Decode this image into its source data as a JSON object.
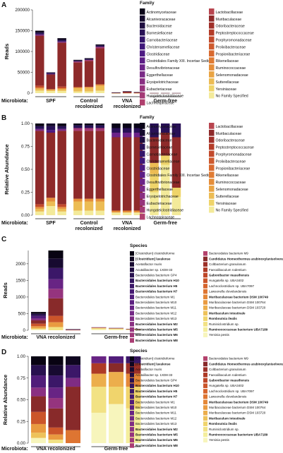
{
  "panels": [
    {
      "letter": "A",
      "chart_data": {
        "type": "bar",
        "stacked": true,
        "ylabel": "Reads",
        "ylim": [
          0,
          200000
        ],
        "yticks": [
          0,
          50000,
          100000,
          150000,
          200000
        ],
        "ytick_labels": [
          "0",
          "50000",
          "100000",
          "150000",
          "200000"
        ],
        "xlabel_prefix": "Microbiota:",
        "groups": [
          {
            "label": "SPF",
            "label2": "",
            "totals": [
              150000,
              50000,
              132000
            ]
          },
          {
            "label": "Control",
            "label2": "recolonized",
            "totals": [
              80000,
              84000,
              117000
            ]
          },
          {
            "label": "VNA",
            "label2": "recolonized",
            "totals": [
              1500,
              4500,
              2500
            ]
          },
          {
            "label": "Germ-free",
            "label2": "",
            "totals": [
              300,
              300,
              300
            ]
          }
        ],
        "legend_title": "Family",
        "legend_col1": [
          "Actinomycetaceae",
          "Alcanivoracaceae",
          "Bacteroidaceae",
          "Barnesiellaceae",
          "Carnobacteriaceae",
          "Christensenellaceae",
          "Clostridiaceae",
          "Clostridiales Family XIII. Incertae Sedis",
          "Desulfovibrionaceae",
          "Eggerthellaceae",
          "Erysipelotrichaceae",
          "Eubacteriaceae",
          "Hungateiclostridiaceae",
          "Lachnospiraceae"
        ],
        "legend_col2": [
          "Lactobacillaceae",
          "Muribaculaceae",
          "Odoribacteraceae",
          "Peptostreptococcaceae",
          "Porphyromonadaceae",
          "Prolixibacteraceae",
          "Propionibacteriaceae",
          "Rikenellaceae",
          "Ruminococcaceae",
          "Selenomonadaceae",
          "Sutterellaceae",
          "Yersiniaceae",
          "No Family Specified"
        ]
      }
    },
    {
      "letter": "B",
      "chart_data": {
        "type": "bar",
        "stacked": true,
        "ylabel": "Relative Abundance",
        "ylim": [
          0,
          1
        ],
        "yticks": [
          0,
          0.25,
          0.5,
          0.75,
          1
        ],
        "ytick_labels": [
          "0.00",
          "0.25",
          "0.50",
          "0.75",
          "1.00"
        ],
        "xlabel_prefix": "Microbiota:",
        "groups": [
          {
            "label": "SPF",
            "label2": ""
          },
          {
            "label": "Control",
            "label2": "recolonized"
          },
          {
            "label": "VNA",
            "label2": "recolonized"
          },
          {
            "label": "Germ-free",
            "label2": ""
          }
        ],
        "legend_title": "Family",
        "legend_col1": [
          "Actinomycetaceae",
          "Alcanivoracaceae",
          "Bacteroidaceae",
          "Barnesiellaceae",
          "Carnobacteriaceae",
          "Christensenellaceae",
          "Clostridiaceae",
          "Clostridiales Family XIII. Incertae Sedis",
          "Desulfovibrionaceae",
          "Eggerthellaceae",
          "Erysipelotrichaceae",
          "Eubacteriaceae",
          "Hungateiclostridiaceae",
          "Lachnospiraceae"
        ],
        "legend_col2": [
          "Lactobacillaceae",
          "Muribaculaceae",
          "Odoribacteraceae",
          "Peptostreptococcaceae",
          "Porphyromonadaceae",
          "Prolixibacteraceae",
          "Propionibacteriaceae",
          "Rikenellaceae",
          "Ruminococcaceae",
          "Selenomonadaceae",
          "Sutterellaceae",
          "Yersiniaceae",
          "No Family Specified"
        ]
      }
    },
    {
      "letter": "C",
      "chart_data": {
        "type": "bar",
        "stacked": true,
        "ylabel": "Reads",
        "ylim": [
          0,
          2400
        ],
        "yticks": [
          0,
          500,
          1000,
          1500,
          2000
        ],
        "ytick_labels": [
          "0",
          "500",
          "1000",
          "1500",
          "2000"
        ],
        "xlabel_prefix": "Microbiota:",
        "groups": [
          {
            "label": "VNA recolonized",
            "label2": "",
            "totals": [
              550,
              2400,
              30
            ]
          },
          {
            "label": "Germ-free",
            "label2": "",
            "totals": [
              90,
              70,
              40
            ]
          }
        ],
        "legend_title": "Species",
        "legend_col1": [
          "[Clostridium] clostridioforme",
          "[Clostridium] lavalense",
          "Acetatifactor muris",
          "Acutalibacter sp. 1XD8-33",
          "Bacteroidales bacterium GP4",
          "Bacteroidales bacterium H10",
          "Bacteroidales bacterium H5",
          "Bacteroidales bacterium H7",
          "Bacteroidales bacterium M1",
          "Bacteroidales bacterium M10",
          "Bacteroidales bacterium M11",
          "Bacteroidales bacterium M12",
          "Bacteroidales bacterium M13",
          "Bacteroidales bacterium M2",
          "Bacteroidales bacterium M5",
          "Bacteroidales bacterium M6",
          "Bacteroidales bacterium M8"
        ],
        "legend_col2": [
          "Bacteroidales bacterium M9",
          "Candidatus Homeothermus arabinoxylanisolvens",
          "Coltbacterium granulosum",
          "Faecalibaculum rodentium",
          "Gabonibacter massiliensis",
          "Hungatella sp. UBA3402",
          "Lachnoclostridium sp. UBA7097",
          "Lawsonella clevelandensis",
          "Muribaculaceae bacterium DSM 100749",
          "Muribaculaceae bacterium DSM 100764",
          "Muribaculaceae bacterium DSM 103720",
          "Muribaculum intestinale",
          "Romboutsia ilealis",
          "Ruminiclostridium sp.",
          "Ruminococcaceae bacterium UBA7189",
          "Yersinia pestis"
        ],
        "bold_col1": [
          1,
          5,
          6,
          7,
          13,
          14,
          15,
          16
        ],
        "bold_col2": [
          1,
          4,
          8,
          11,
          12,
          14
        ]
      }
    },
    {
      "letter": "D",
      "chart_data": {
        "type": "bar",
        "stacked": true,
        "ylabel": "Relative Abundance",
        "ylim": [
          0,
          1
        ],
        "yticks": [
          0,
          0.25,
          0.5,
          0.75,
          1
        ],
        "ytick_labels": [
          "0.00",
          "0.25",
          "0.50",
          "0.75",
          "1.00"
        ],
        "xlabel_prefix": "Microbiota:",
        "groups": [
          {
            "label": "VNA recolonized",
            "label2": ""
          },
          {
            "label": "Germ-free",
            "label2": ""
          }
        ],
        "legend_title": "Species",
        "legend_col1": [
          "[Clostridium] clostridioforme",
          "[Clostridium] lavalense",
          "Acetatifactor muris",
          "Acutalibacter sp. 1XD8-33",
          "Bacteroidales bacterium GP4",
          "Bacteroidales bacterium H10",
          "Bacteroidales bacterium H5",
          "Bacteroidales bacterium H7",
          "Bacteroidales bacterium M1",
          "Bacteroidales bacterium M10",
          "Bacteroidales bacterium M11",
          "Bacteroidales bacterium M12",
          "Bacteroidales bacterium M13",
          "Bacteroidales bacterium M2",
          "Bacteroidales bacterium M5",
          "Bacteroidales bacterium M6",
          "Bacteroidales bacterium M8"
        ],
        "legend_col2": [
          "Bacteroidales bacterium M9",
          "Candidatus Homeothermus arabinoxylanisolvens",
          "Coltbacterium granulosum",
          "Faecalibaculum rodentium",
          "Gabonibacter massiliensis",
          "Hungatella sp. UBA3402",
          "Lachnoclostridium sp. UBA7097",
          "Lawsonella clevelandensis",
          "Muribaculaceae bacterium DSM 100749",
          "Muribaculaceae bacterium DSM 100764",
          "Muribaculaceae bacterium DSM 103720",
          "Muribaculum intestinale",
          "Romboutsia ilealis",
          "Ruminiclostridium sp.",
          "Ruminococcaceae bacterium UBA7189",
          "Yersinia pestis"
        ],
        "bold_col1": [
          1,
          5,
          6,
          7,
          13,
          14,
          15,
          16
        ],
        "bold_col2": [
          1,
          4,
          8,
          11,
          12,
          14
        ]
      }
    }
  ],
  "colors": {
    "family_col1": [
      "#0a0418",
      "#140a2c",
      "#1e0d40",
      "#281156",
      "#33146a",
      "#3f177a",
      "#4d1a82",
      "#5c1e86",
      "#6b2388",
      "#7a2a86",
      "#892f82",
      "#97347c",
      "#a43a76",
      "#b0406e"
    ],
    "family_col2": [
      "#b8454f",
      "#8e2a2a",
      "#a0302a",
      "#b43c28",
      "#c24a2c",
      "#ce5a2e",
      "#d86a30",
      "#e07c34",
      "#e58e3a",
      "#e9a444",
      "#ecbc54",
      "#efd46a",
      "#f3ea9a"
    ],
    "species_col1": [
      "#080312",
      "#0f0620",
      "#170a30",
      "#1f0d40",
      "#28114f",
      "#31145d",
      "#3b1768",
      "#461a72",
      "#511d7a",
      "#5c2080",
      "#682484",
      "#732885",
      "#7f2c84",
      "#8a3082",
      "#95347e",
      "#a03879",
      "#aa3d73"
    ],
    "species_col2": [
      "#b4426c",
      "#882a2a",
      "#9c3028",
      "#ae3a26",
      "#be4628",
      "#cb552a",
      "#d6642d",
      "#de7532",
      "#e48738",
      "#e99a40",
      "#ecae4c",
      "#eec25a",
      "#f0d46c",
      "#f2e284",
      "#f4ee9c",
      "#f7f5bc"
    ]
  }
}
